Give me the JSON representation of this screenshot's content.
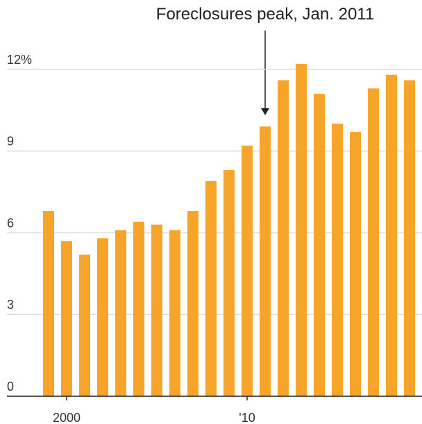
{
  "chart_data": {
    "type": "bar",
    "annotation": "Foreclosures peak, Jan. 2011",
    "categories": [
      null,
      "2000",
      null,
      null,
      null,
      null,
      null,
      null,
      null,
      null,
      null,
      "'10",
      null,
      null,
      null,
      null,
      null,
      null,
      null,
      null,
      null
    ],
    "values": [
      6.8,
      5.7,
      5.2,
      5.8,
      6.1,
      6.4,
      6.3,
      6.1,
      6.8,
      7.9,
      8.3,
      9.2,
      9.9,
      11.6,
      12.2,
      11.1,
      10.0,
      9.7,
      11.3,
      11.8,
      11.6
    ],
    "color": "#f7a42a",
    "ylim": [
      0,
      13.5
    ],
    "yticks": [
      0,
      3,
      6,
      9,
      {
        "value": 12,
        "label": "12%"
      }
    ],
    "grid": true
  }
}
